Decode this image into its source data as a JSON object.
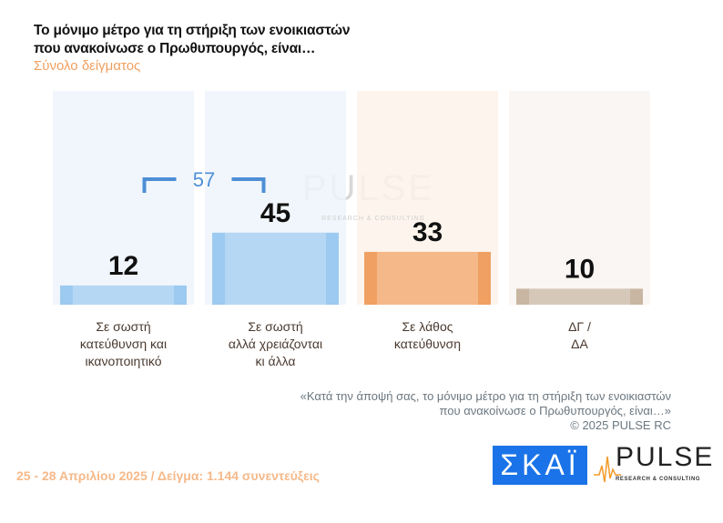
{
  "title_line1": "Το μόνιμο μέτρο για τη στήριξη των ενοικιαστών",
  "title_line2": "που ανακοίνωσε ο Πρωθυπουργός, είναι…",
  "subtitle": "Σύνολο δείγματος",
  "chart_data": {
    "type": "bar",
    "categories": [
      [
        "Σε σωστή",
        "κατεύθυνση και",
        "ικανοποιητικό"
      ],
      [
        "Σε σωστή",
        "αλλά χρειάζονται",
        "κι άλλα"
      ],
      [
        "Σε λάθος",
        "κατεύθυνση"
      ],
      [
        "ΔΓ /",
        "ΔΑ"
      ]
    ],
    "values": [
      12,
      45,
      33,
      10
    ],
    "colors": [
      "#9ccaf0",
      "#9ccaf0",
      "#f0a062",
      "#c8b6a2"
    ],
    "bracket": {
      "label": "57",
      "spans": [
        0,
        1
      ]
    }
  },
  "question_note": [
    "«Κατά την άποψή σας, το μόνιμο μέτρο για τη στήριξη των ενοικιαστών",
    "που ανακοίνωσε ο Πρωθυπουργός, είναι…»",
    "©  2025  PULSE RC"
  ],
  "footer": "25 - 28 Απριλίου 2025  /  Δείγμα:  1.144 συνεντεύξεις",
  "logos": {
    "skai": "ΣΚΑΪ",
    "pulse": "PULSE",
    "pulse_sub": "RESEARCH & CONSULTING",
    "watermark": "PULSE",
    "watermark_sub": "RESEARCH & CONSULTING"
  }
}
